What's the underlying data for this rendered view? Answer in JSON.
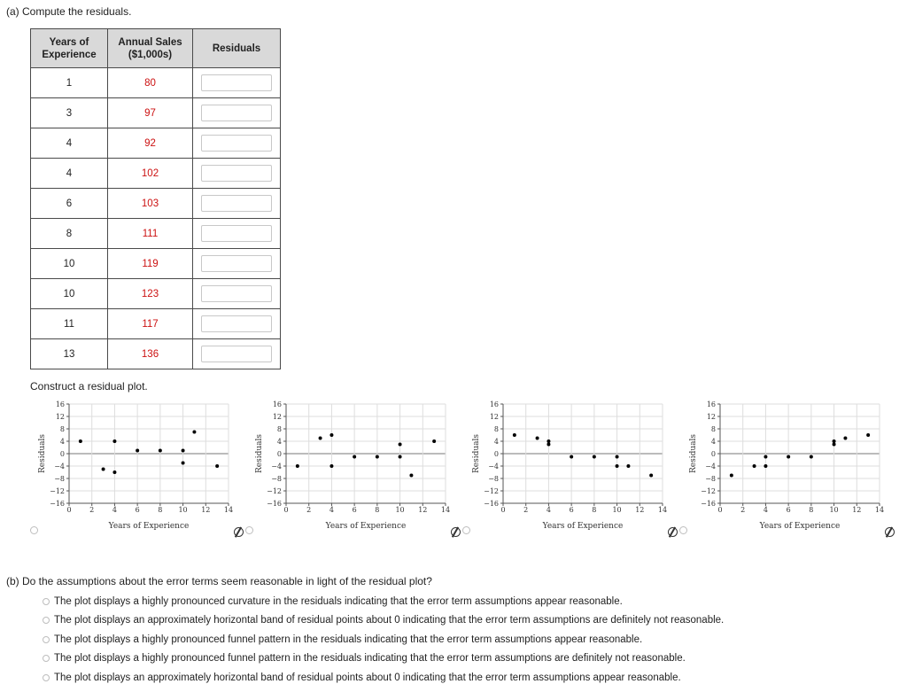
{
  "part_a": {
    "label": "(a)  Compute the residuals."
  },
  "table": {
    "headers": {
      "years_line1": "Years of",
      "years_line2": "Experience",
      "sales_line1": "Annual Sales",
      "sales_line2": "($1,000s)",
      "residuals": "Residuals"
    },
    "rows": [
      {
        "years": "1",
        "sales": "80"
      },
      {
        "years": "3",
        "sales": "97"
      },
      {
        "years": "4",
        "sales": "92"
      },
      {
        "years": "4",
        "sales": "102"
      },
      {
        "years": "6",
        "sales": "103"
      },
      {
        "years": "8",
        "sales": "111"
      },
      {
        "years": "10",
        "sales": "119"
      },
      {
        "years": "10",
        "sales": "123"
      },
      {
        "years": "11",
        "sales": "117"
      },
      {
        "years": "13",
        "sales": "136"
      }
    ]
  },
  "plot_section": {
    "label": "Construct a residual plot."
  },
  "colors": {
    "sales_text": "#cc1111",
    "point": "#000000",
    "grid": "#dddddd"
  },
  "chart_data": [
    {
      "type": "scatter",
      "xlabel": "Years of Experience",
      "ylabel": "Residuals",
      "xlim": [
        0,
        14
      ],
      "ylim": [
        -16,
        16
      ],
      "xticks": [
        0,
        2,
        4,
        6,
        8,
        10,
        12,
        14
      ],
      "yticks": [
        16,
        12,
        8,
        4,
        0,
        -4,
        -8,
        -12,
        -16
      ],
      "points": [
        [
          1,
          4
        ],
        [
          3,
          -5
        ],
        [
          4,
          4
        ],
        [
          4,
          -6
        ],
        [
          6,
          1
        ],
        [
          8,
          1
        ],
        [
          10,
          1
        ],
        [
          10,
          -3
        ],
        [
          11,
          7
        ],
        [
          13,
          -4
        ]
      ]
    },
    {
      "type": "scatter",
      "xlabel": "Years of Experience",
      "ylabel": "Residuals",
      "xlim": [
        0,
        14
      ],
      "ylim": [
        -16,
        16
      ],
      "xticks": [
        0,
        2,
        4,
        6,
        8,
        10,
        12,
        14
      ],
      "yticks": [
        16,
        12,
        8,
        4,
        0,
        -4,
        -8,
        -12,
        -16
      ],
      "points": [
        [
          1,
          -4
        ],
        [
          3,
          5
        ],
        [
          4,
          6
        ],
        [
          4,
          -4
        ],
        [
          6,
          -1
        ],
        [
          8,
          -1
        ],
        [
          10,
          3
        ],
        [
          10,
          -1
        ],
        [
          11,
          -7
        ],
        [
          13,
          4
        ]
      ]
    },
    {
      "type": "scatter",
      "xlabel": "Years of Experience",
      "ylabel": "Residuals",
      "xlim": [
        0,
        14
      ],
      "ylim": [
        -16,
        16
      ],
      "xticks": [
        0,
        2,
        4,
        6,
        8,
        10,
        12,
        14
      ],
      "yticks": [
        16,
        12,
        8,
        4,
        0,
        -4,
        -8,
        -12,
        -16
      ],
      "points": [
        [
          1,
          6
        ],
        [
          3,
          5
        ],
        [
          4,
          4
        ],
        [
          4,
          3
        ],
        [
          6,
          -1
        ],
        [
          8,
          -1
        ],
        [
          10,
          -1
        ],
        [
          10,
          -4
        ],
        [
          11,
          -4
        ],
        [
          13,
          -7
        ]
      ]
    },
    {
      "type": "scatter",
      "xlabel": "Years of Experience",
      "ylabel": "Residuals",
      "xlim": [
        0,
        14
      ],
      "ylim": [
        -16,
        16
      ],
      "xticks": [
        0,
        2,
        4,
        6,
        8,
        10,
        12,
        14
      ],
      "yticks": [
        16,
        12,
        8,
        4,
        0,
        -4,
        -8,
        -12,
        -16
      ],
      "points": [
        [
          1,
          -7
        ],
        [
          3,
          -4
        ],
        [
          4,
          -1
        ],
        [
          4,
          -4
        ],
        [
          6,
          -1
        ],
        [
          8,
          -1
        ],
        [
          10,
          4
        ],
        [
          10,
          3
        ],
        [
          11,
          5
        ],
        [
          13,
          6
        ]
      ]
    }
  ],
  "part_b": {
    "label": "(b)  Do the assumptions about the error terms seem reasonable in light of the residual plot?",
    "options": [
      "The plot displays a highly pronounced curvature in the residuals indicating that the error term assumptions appear reasonable.",
      "The plot displays an approximately horizontal band of residual points about 0 indicating that the error term assumptions are definitely not reasonable.",
      "The plot displays a highly pronounced funnel pattern in the residuals indicating that the error term assumptions appear reasonable.",
      "The plot displays a highly pronounced funnel pattern in the residuals indicating that the error term assumptions are definitely not reasonable.",
      "The plot displays an approximately horizontal band of residual points about 0 indicating that the error term assumptions appear reasonable."
    ]
  }
}
